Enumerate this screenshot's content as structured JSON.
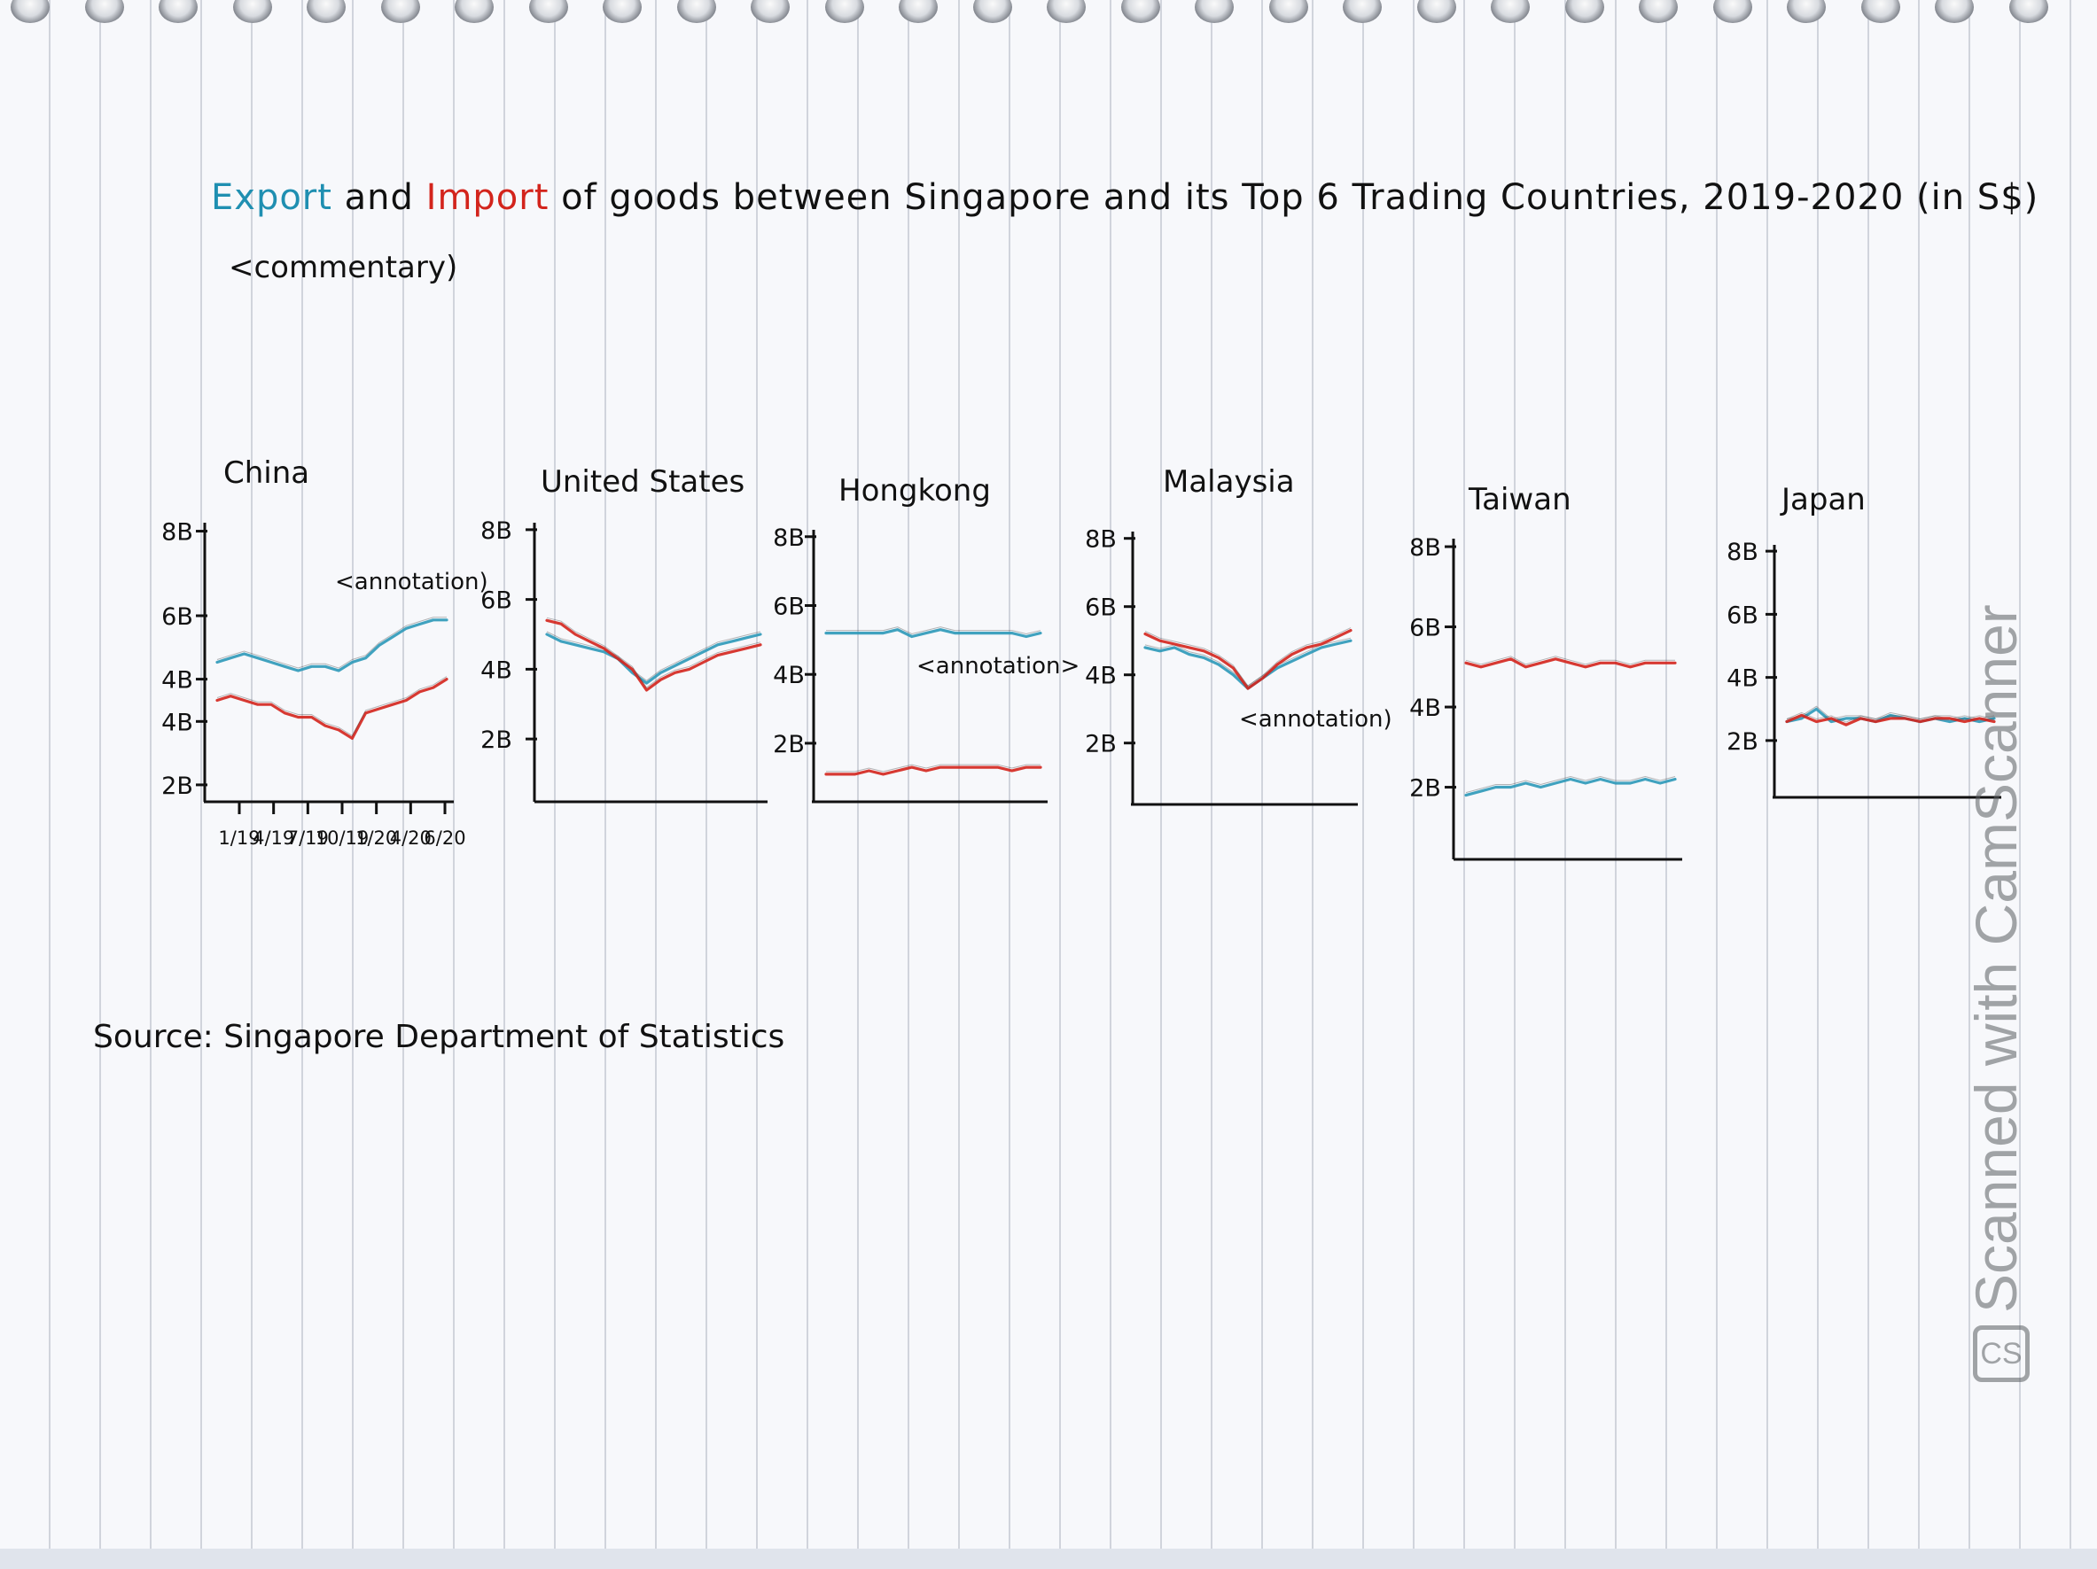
{
  "title": {
    "export_word": "Export",
    "and_word": "and",
    "import_word": "Import",
    "rest": "of goods between Singapore and its Top 6 Trading Countries, 2019-2020 (in S$)"
  },
  "commentary": "<commentary)",
  "source": "Source: Singapore Department of Statistics",
  "stamp": {
    "logo": "CS",
    "text": "Scanned with CamScanner"
  },
  "colors": {
    "export": "#2b98b8",
    "import": "#d3241c",
    "ink": "#111111"
  },
  "chart_data": [
    {
      "type": "line",
      "title": "China",
      "y_ticks": [
        "8B",
        "6B",
        "4B",
        "4B",
        "2B"
      ],
      "y_tick_values": [
        8,
        6,
        4.5,
        3.5,
        2
      ],
      "x_ticks": [
        "1/19",
        "4/19",
        "7/19",
        "10/19",
        "1/20",
        "4/20",
        "6/20"
      ],
      "ylim": [
        1.6,
        8.2
      ],
      "annotation": "<annotation)",
      "series": [
        {
          "name": "Export",
          "values": [
            4.9,
            5.0,
            5.1,
            5.0,
            4.9,
            4.8,
            4.7,
            4.8,
            4.8,
            4.7,
            4.9,
            5.0,
            5.3,
            5.5,
            5.7,
            5.8,
            5.9,
            5.9
          ]
        },
        {
          "name": "Import",
          "values": [
            4.0,
            4.1,
            4.0,
            3.9,
            3.9,
            3.7,
            3.6,
            3.6,
            3.4,
            3.3,
            3.1,
            3.7,
            3.8,
            3.9,
            4.0,
            4.2,
            4.3,
            4.5
          ]
        }
      ]
    },
    {
      "type": "line",
      "title": "United States",
      "y_ticks": [
        "8B",
        "6B",
        "4B",
        "2B"
      ],
      "y_tick_values": [
        8,
        6,
        4,
        2
      ],
      "ylim": [
        0.2,
        8.2
      ],
      "annotation": "",
      "series": [
        {
          "name": "Export",
          "values": [
            5.0,
            4.8,
            4.7,
            4.6,
            4.5,
            4.3,
            3.9,
            3.6,
            3.9,
            4.1,
            4.3,
            4.5,
            4.7,
            4.8,
            4.9,
            5.0
          ]
        },
        {
          "name": "Import",
          "values": [
            5.4,
            5.3,
            5.0,
            4.8,
            4.6,
            4.3,
            4.0,
            3.4,
            3.7,
            3.9,
            4.0,
            4.2,
            4.4,
            4.5,
            4.6,
            4.7
          ]
        }
      ]
    },
    {
      "type": "line",
      "title": "Hongkong",
      "y_ticks": [
        "8B",
        "6B",
        "4B",
        "2B"
      ],
      "y_tick_values": [
        8,
        6,
        4,
        2
      ],
      "ylim": [
        0.3,
        8.2
      ],
      "annotation": "<annotation>",
      "series": [
        {
          "name": "Export",
          "values": [
            5.2,
            5.2,
            5.2,
            5.2,
            5.2,
            5.3,
            5.1,
            5.2,
            5.3,
            5.2,
            5.2,
            5.2,
            5.2,
            5.2,
            5.1,
            5.2
          ]
        },
        {
          "name": "Import",
          "values": [
            1.1,
            1.1,
            1.1,
            1.2,
            1.1,
            1.2,
            1.3,
            1.2,
            1.3,
            1.3,
            1.3,
            1.3,
            1.3,
            1.2,
            1.3,
            1.3
          ]
        }
      ]
    },
    {
      "type": "line",
      "title": "Malaysia",
      "y_ticks": [
        "8B",
        "6B",
        "4B",
        "2B"
      ],
      "y_tick_values": [
        8,
        6,
        4,
        2
      ],
      "ylim": [
        0.2,
        8.2
      ],
      "annotation": "<annotation)",
      "series": [
        {
          "name": "Export",
          "values": [
            4.8,
            4.7,
            4.8,
            4.6,
            4.5,
            4.3,
            4.0,
            3.6,
            3.9,
            4.2,
            4.4,
            4.6,
            4.8,
            4.9,
            5.0
          ]
        },
        {
          "name": "Import",
          "values": [
            5.2,
            5.0,
            4.9,
            4.8,
            4.7,
            4.5,
            4.2,
            3.6,
            3.9,
            4.3,
            4.6,
            4.8,
            4.9,
            5.1,
            5.3
          ]
        }
      ]
    },
    {
      "type": "line",
      "title": "Taiwan",
      "y_ticks": [
        "8B",
        "6B",
        "4B",
        "2B"
      ],
      "y_tick_values": [
        8,
        6,
        4,
        2
      ],
      "ylim": [
        0.2,
        8.2
      ],
      "annotation": "",
      "series": [
        {
          "name": "Export",
          "values": [
            1.8,
            1.9,
            2.0,
            2.0,
            2.1,
            2.0,
            2.1,
            2.2,
            2.1,
            2.2,
            2.1,
            2.1,
            2.2,
            2.1,
            2.2
          ]
        },
        {
          "name": "Import",
          "values": [
            5.1,
            5.0,
            5.1,
            5.2,
            5.0,
            5.1,
            5.2,
            5.1,
            5.0,
            5.1,
            5.1,
            5.0,
            5.1,
            5.1,
            5.1
          ]
        }
      ]
    },
    {
      "type": "line",
      "title": "Japan",
      "y_ticks": [
        "8B",
        "6B",
        "4B",
        "2B"
      ],
      "y_tick_values": [
        8,
        6,
        4,
        2
      ],
      "ylim": [
        0.2,
        8.2
      ],
      "annotation": "",
      "series": [
        {
          "name": "Export",
          "values": [
            2.6,
            2.7,
            3.0,
            2.6,
            2.7,
            2.7,
            2.6,
            2.8,
            2.7,
            2.6,
            2.7,
            2.6,
            2.7,
            2.6,
            2.7
          ]
        },
        {
          "name": "Import",
          "values": [
            2.6,
            2.8,
            2.6,
            2.7,
            2.5,
            2.7,
            2.6,
            2.7,
            2.7,
            2.6,
            2.7,
            2.7,
            2.6,
            2.7,
            2.6
          ]
        }
      ]
    }
  ]
}
